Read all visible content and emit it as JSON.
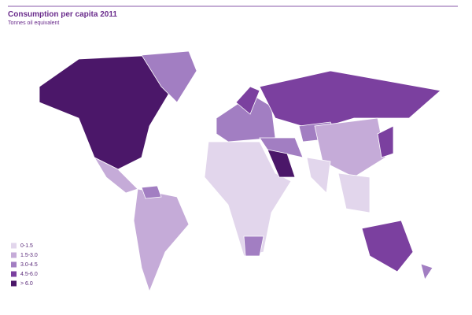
{
  "header": {
    "title": "Consumption per capita 2011",
    "subtitle": "Tonnes oil equivalent"
  },
  "legend": {
    "items": [
      {
        "label": "0-1.5",
        "color": "#e2d6ec"
      },
      {
        "label": "1.5-3.0",
        "color": "#c5abd8"
      },
      {
        "label": "3.0-4.5",
        "color": "#a27ec2"
      },
      {
        "label": "4.5-6.0",
        "color": "#7b409f"
      },
      {
        "label": "> 6.0",
        "color": "#4b1769"
      }
    ]
  }
}
